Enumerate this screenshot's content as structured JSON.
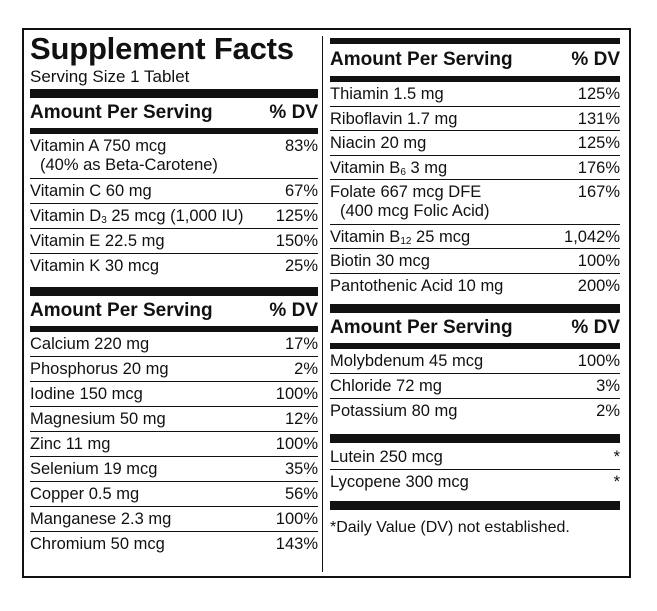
{
  "title": "Supplement Facts",
  "serving_size": "Serving Size 1 Tablet",
  "headers": {
    "amount_per_serving": "Amount Per Serving",
    "percent_dv": "% DV"
  },
  "left": {
    "vitamins": [
      {
        "name": "Vitamin A 750 mcg",
        "sub": "(40% as Beta-Carotene)",
        "dv": "83%"
      },
      {
        "name": "Vitamin C 60 mg",
        "dv": "67%"
      },
      {
        "pre": "Vitamin D",
        "subscript": "3",
        "post": " 25 mcg (1,000 IU)",
        "dv": "125%"
      },
      {
        "name": "Vitamin E 22.5 mg",
        "dv": "150%"
      },
      {
        "name": "Vitamin K 30 mcg",
        "dv": "25%"
      }
    ],
    "minerals": [
      {
        "name": "Calcium 220 mg",
        "dv": "17%"
      },
      {
        "name": "Phosphorus 20 mg",
        "dv": "2%"
      },
      {
        "name": "Iodine 150 mcg",
        "dv": "100%"
      },
      {
        "name": "Magnesium 50 mg",
        "dv": "12%"
      },
      {
        "name": "Zinc 11 mg",
        "dv": "100%"
      },
      {
        "name": "Selenium 19 mcg",
        "dv": "35%"
      },
      {
        "name": "Copper 0.5 mg",
        "dv": "56%"
      },
      {
        "name": "Manganese 2.3 mg",
        "dv": "100%"
      },
      {
        "name": "Chromium 50 mcg",
        "dv": "143%"
      }
    ]
  },
  "right": {
    "vitamins": [
      {
        "name": "Thiamin 1.5 mg",
        "dv": "125%"
      },
      {
        "name": "Riboflavin 1.7 mg",
        "dv": "131%"
      },
      {
        "name": "Niacin 20 mg",
        "dv": "125%"
      },
      {
        "pre": "Vitamin B",
        "subscript": "6",
        "post": " 3 mg",
        "dv": "176%"
      },
      {
        "name": "Folate 667 mcg DFE",
        "sub": "(400 mcg Folic Acid)",
        "dv": "167%"
      },
      {
        "pre": "Vitamin B",
        "subscript": "12",
        "post": " 25 mcg",
        "dv": "1,042%"
      },
      {
        "name": "Biotin 30 mcg",
        "dv": "100%"
      },
      {
        "name": "Pantothenic Acid 10 mg",
        "dv": "200%"
      }
    ],
    "minerals": [
      {
        "name": "Molybdenum 45 mcg",
        "dv": "100%"
      },
      {
        "name": "Chloride 72 mg",
        "dv": "3%"
      },
      {
        "name": "Potassium 80 mg",
        "dv": "2%"
      }
    ],
    "other": [
      {
        "name": "Lutein 250 mcg",
        "dv": "*"
      },
      {
        "name": "Lycopene 300 mcg",
        "dv": "*"
      }
    ],
    "footnote": "*Daily Value (DV) not established."
  }
}
